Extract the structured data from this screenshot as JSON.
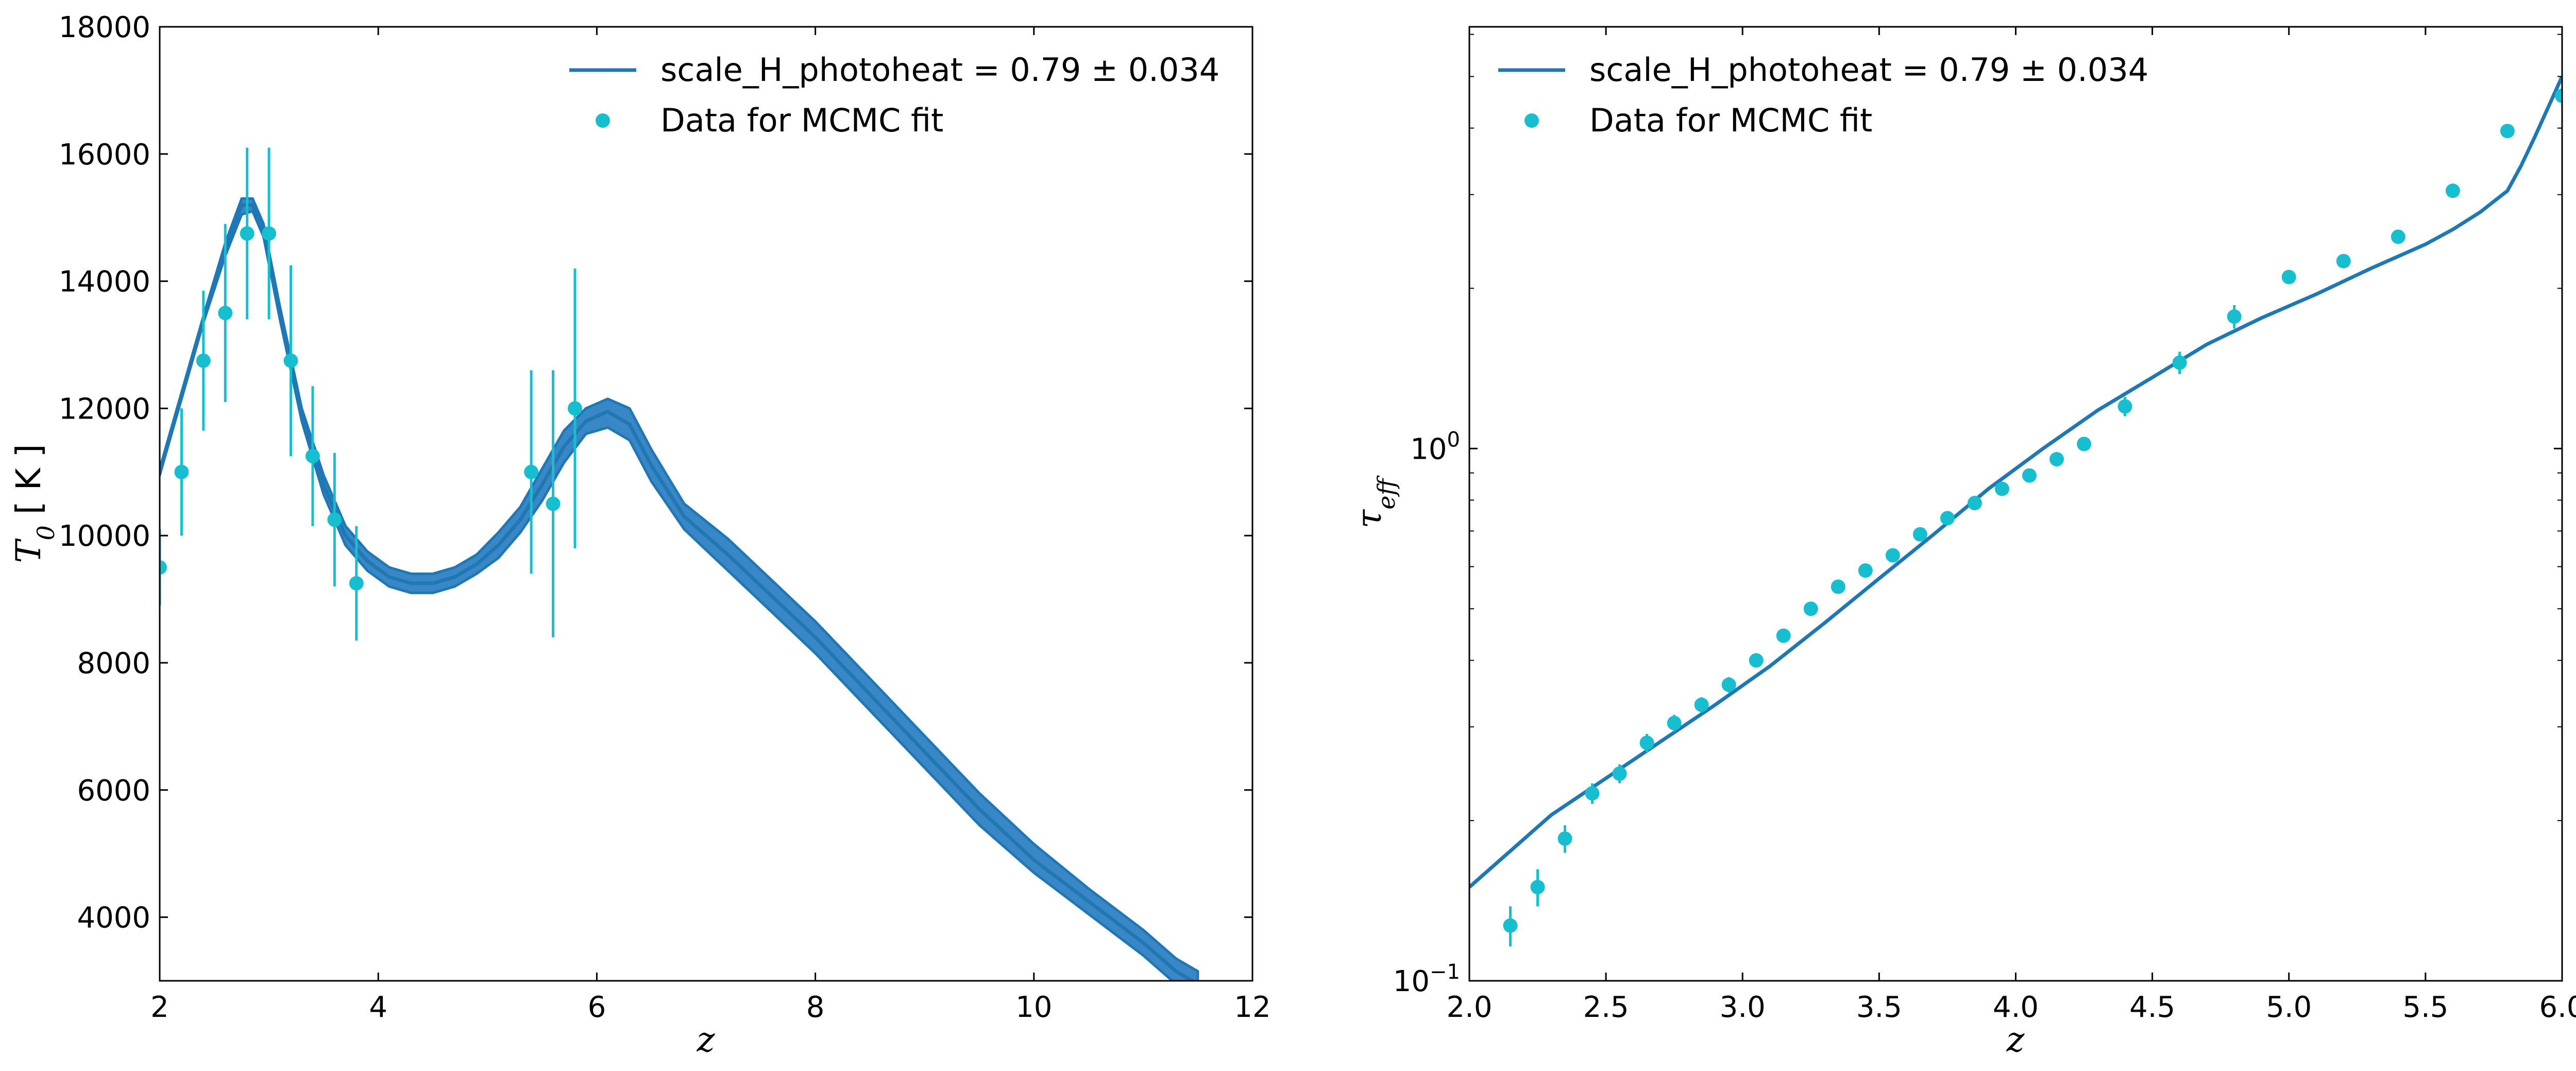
{
  "colors": {
    "model": "#1f77b4",
    "band": "#3a87c6",
    "data": "#17becf",
    "axis": "#000000"
  },
  "chart_data": [
    {
      "type": "line",
      "title": "",
      "xlabel": "z",
      "ylabel_main": "T",
      "ylabel_sub": "0",
      "ylabel_unit": " [ K ]",
      "xlim": [
        2,
        12
      ],
      "ylim": [
        3000,
        18000
      ],
      "xticks": [
        2,
        4,
        6,
        8,
        10,
        12
      ],
      "yticks": [
        4000,
        6000,
        8000,
        10000,
        12000,
        14000,
        16000,
        18000
      ],
      "legend_position": "top-right",
      "legend": {
        "line": "scale_H_photoheat = 0.79 ± 0.034",
        "points": "Data for MCMC fit"
      },
      "series": [
        {
          "name": "scale_H_photoheat = 0.79 ± 0.034",
          "kind": "line_with_band",
          "x": [
            2.0,
            2.2,
            2.4,
            2.6,
            2.75,
            2.85,
            2.95,
            3.1,
            3.3,
            3.5,
            3.7,
            3.9,
            4.1,
            4.3,
            4.5,
            4.7,
            4.9,
            5.1,
            5.3,
            5.5,
            5.7,
            5.9,
            6.1,
            6.3,
            6.5,
            6.8,
            7.2,
            7.6,
            8.0,
            8.5,
            9.0,
            9.5,
            10.0,
            10.5,
            11.0,
            11.3,
            11.5
          ],
          "y": [
            11000,
            12200,
            13400,
            14500,
            15200,
            15200,
            14800,
            13500,
            11900,
            10800,
            10000,
            9600,
            9350,
            9250,
            9250,
            9350,
            9550,
            9850,
            10250,
            10800,
            11400,
            11800,
            11950,
            11750,
            11100,
            10300,
            9700,
            9050,
            8400,
            7500,
            6600,
            5700,
            4900,
            4250,
            3600,
            3150,
            2950
          ],
          "y_low": [
            10950,
            12150,
            13350,
            14400,
            15050,
            15100,
            14700,
            13400,
            11800,
            10650,
            9850,
            9450,
            9200,
            9100,
            9100,
            9200,
            9400,
            9650,
            10050,
            10550,
            11150,
            11600,
            11700,
            11500,
            10850,
            10100,
            9450,
            8800,
            8150,
            7250,
            6350,
            5450,
            4700,
            4050,
            3400,
            2950,
            2750
          ],
          "y_high": [
            11050,
            12250,
            13450,
            14600,
            15300,
            15300,
            14900,
            13600,
            12000,
            10950,
            10150,
            9750,
            9500,
            9400,
            9400,
            9500,
            9700,
            10050,
            10450,
            11050,
            11650,
            12000,
            12150,
            12000,
            11350,
            10500,
            9950,
            9300,
            8650,
            7750,
            6850,
            5950,
            5150,
            4450,
            3800,
            3350,
            3150
          ]
        },
        {
          "name": "Data for MCMC fit",
          "kind": "errorbar",
          "x": [
            2.0,
            2.2,
            2.4,
            2.6,
            2.8,
            3.0,
            3.2,
            3.4,
            3.6,
            3.8,
            5.4,
            5.6,
            5.8
          ],
          "y": [
            9500,
            11000,
            12750,
            13500,
            14750,
            14750,
            12750,
            11250,
            10250,
            9250,
            11000,
            10500,
            12000
          ],
          "err": [
            600,
            1000,
            1100,
            1400,
            1350,
            1350,
            1500,
            1100,
            1050,
            900,
            1600,
            2100,
            2200
          ]
        }
      ]
    },
    {
      "type": "line",
      "title": "",
      "xlabel": "z",
      "ylabel_main": "τ",
      "ylabel_sub": "eff",
      "ylabel_unit": "",
      "yscale": "log",
      "xlim": [
        2.0,
        6.0
      ],
      "ylim": [
        0.1,
        6.2
      ],
      "xticks": [
        2.0,
        2.5,
        3.0,
        3.5,
        4.0,
        4.5,
        5.0,
        5.5,
        6.0
      ],
      "yticks": [
        {
          "value": 0.1,
          "base": "10",
          "exp": "−1"
        },
        {
          "value": 1,
          "base": "10",
          "exp": "0"
        }
      ],
      "legend_position": "top-left",
      "legend": {
        "line": "scale_H_photoheat = 0.79 ± 0.034",
        "points": "Data for MCMC fit"
      },
      "series": [
        {
          "name": "scale_H_photoheat = 0.79 ± 0.034",
          "kind": "line",
          "x": [
            2.0,
            2.3,
            2.6,
            2.9,
            3.1,
            3.3,
            3.5,
            3.7,
            3.9,
            4.1,
            4.3,
            4.5,
            4.7,
            4.9,
            5.1,
            5.3,
            5.5,
            5.6,
            5.7,
            5.8,
            5.85,
            5.9,
            6.0
          ],
          "y": [
            0.15,
            0.205,
            0.26,
            0.33,
            0.39,
            0.47,
            0.57,
            0.69,
            0.84,
            1.0,
            1.18,
            1.36,
            1.57,
            1.76,
            1.95,
            2.18,
            2.42,
            2.58,
            2.78,
            3.05,
            3.4,
            3.85,
            5.0
          ]
        },
        {
          "name": "Data for MCMC fit",
          "kind": "errorbar",
          "x": [
            2.15,
            2.25,
            2.35,
            2.45,
            2.55,
            2.65,
            2.75,
            2.85,
            2.95,
            3.05,
            3.15,
            3.25,
            3.35,
            3.45,
            3.55,
            3.65,
            3.75,
            3.85,
            3.95,
            4.05,
            4.15,
            4.25,
            4.4,
            4.6,
            4.8,
            5.0,
            5.2,
            5.4,
            5.6,
            5.8,
            6.0
          ],
          "y": [
            0.127,
            0.15,
            0.185,
            0.225,
            0.245,
            0.28,
            0.305,
            0.33,
            0.36,
            0.4,
            0.445,
            0.5,
            0.55,
            0.59,
            0.63,
            0.69,
            0.74,
            0.79,
            0.84,
            0.89,
            0.955,
            1.02,
            1.2,
            1.45,
            1.77,
            2.1,
            2.25,
            2.5,
            3.05,
            3.95,
            4.6
          ],
          "err": [
            0.011,
            0.012,
            0.011,
            0.01,
            0.01,
            0.011,
            0.011,
            0.011,
            0.012,
            0.012,
            0.013,
            0.014,
            0.015,
            0.016,
            0.017,
            0.019,
            0.02,
            0.021,
            0.022,
            0.024,
            0.026,
            0.028,
            0.05,
            0.07,
            0.09,
            0.05,
            0.05,
            0.06,
            0.07,
            0.08,
            0.1
          ]
        }
      ]
    }
  ]
}
